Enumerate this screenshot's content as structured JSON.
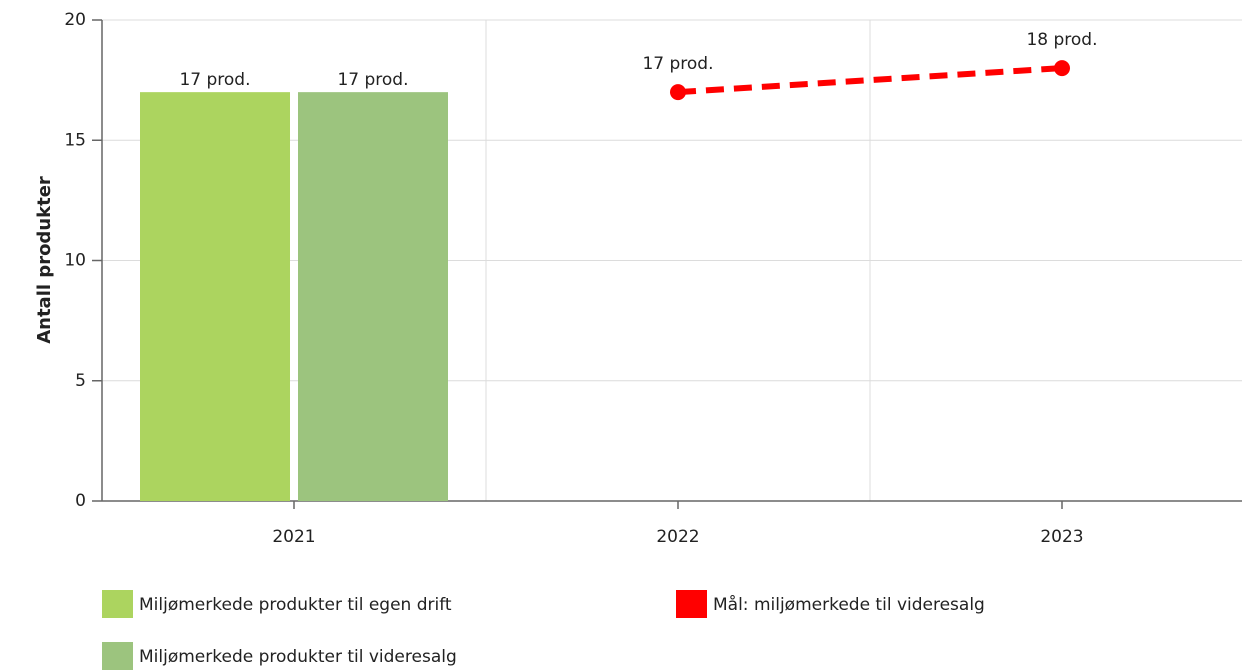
{
  "chart_data": {
    "type": "bar",
    "y_label": "Antall produkter",
    "categories": [
      "2021",
      "2022",
      "2023"
    ],
    "series": [
      {
        "name": "Miljømerkede produkter til egen drift",
        "type": "bar",
        "color": "#acd45f",
        "values": [
          17,
          null,
          null
        ],
        "value_labels": [
          "17 prod.",
          null,
          null
        ]
      },
      {
        "name": "Miljømerkede produkter til videresalg",
        "type": "bar",
        "color": "#9cc47e",
        "values": [
          17,
          null,
          null
        ],
        "value_labels": [
          "17 prod.",
          null,
          null
        ]
      },
      {
        "name": "Mål: miljømerkede til videresalg",
        "type": "line",
        "color": "#ff0000",
        "dashed": true,
        "values": [
          null,
          17,
          18
        ],
        "value_labels": [
          null,
          "17 prod.",
          "18 prod."
        ]
      }
    ],
    "ylim": [
      0,
      20
    ],
    "yticks": [
      0,
      5,
      10,
      15,
      20
    ],
    "grid": true
  }
}
